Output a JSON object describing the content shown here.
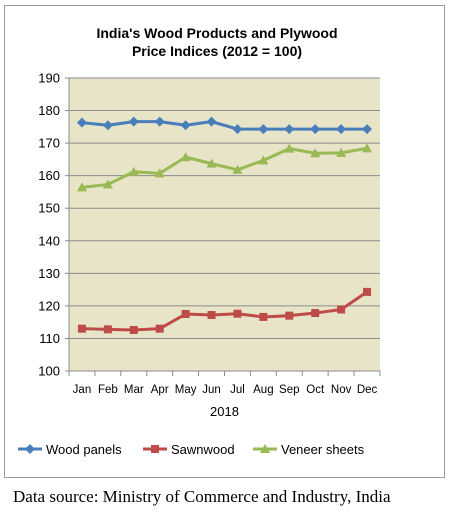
{
  "chart_data": {
    "type": "line",
    "title_lines": [
      "India's Wood Products and Plywood",
      "Price Indices (2012 = 100)"
    ],
    "xlabel": "2018",
    "ylabel": "",
    "categories": [
      "Jan",
      "Feb",
      "Mar",
      "Apr",
      "May",
      "Jun",
      "Jul",
      "Aug",
      "Sep",
      "Oct",
      "Nov",
      "Dec"
    ],
    "ylim": [
      100,
      190
    ],
    "yticks": [
      100,
      110,
      120,
      130,
      140,
      150,
      160,
      170,
      180,
      190
    ],
    "grid": "horizontal",
    "legend_position": "bottom",
    "plot_background": "#e8e4c8",
    "series": [
      {
        "name": "Wood panels",
        "color": "#4a7ebb",
        "marker": "diamond",
        "values": [
          176.3,
          175.5,
          176.6,
          176.6,
          175.5,
          176.6,
          174.3,
          174.3,
          174.3,
          174.3,
          174.3,
          174.3
        ]
      },
      {
        "name": "Sawnwood",
        "color": "#be4b48",
        "marker": "square",
        "values": [
          113.0,
          112.8,
          112.6,
          113.0,
          117.5,
          117.2,
          117.6,
          116.6,
          117.0,
          117.8,
          118.9,
          124.3
        ]
      },
      {
        "name": "Veneer sheets",
        "color": "#98b954",
        "marker": "triangle",
        "values": [
          156.4,
          157.3,
          161.2,
          160.7,
          165.7,
          163.7,
          161.8,
          164.7,
          168.3,
          166.9,
          167.0,
          168.4
        ]
      }
    ]
  },
  "source_note": "Data source: Ministry of Commerce and Industry, India"
}
